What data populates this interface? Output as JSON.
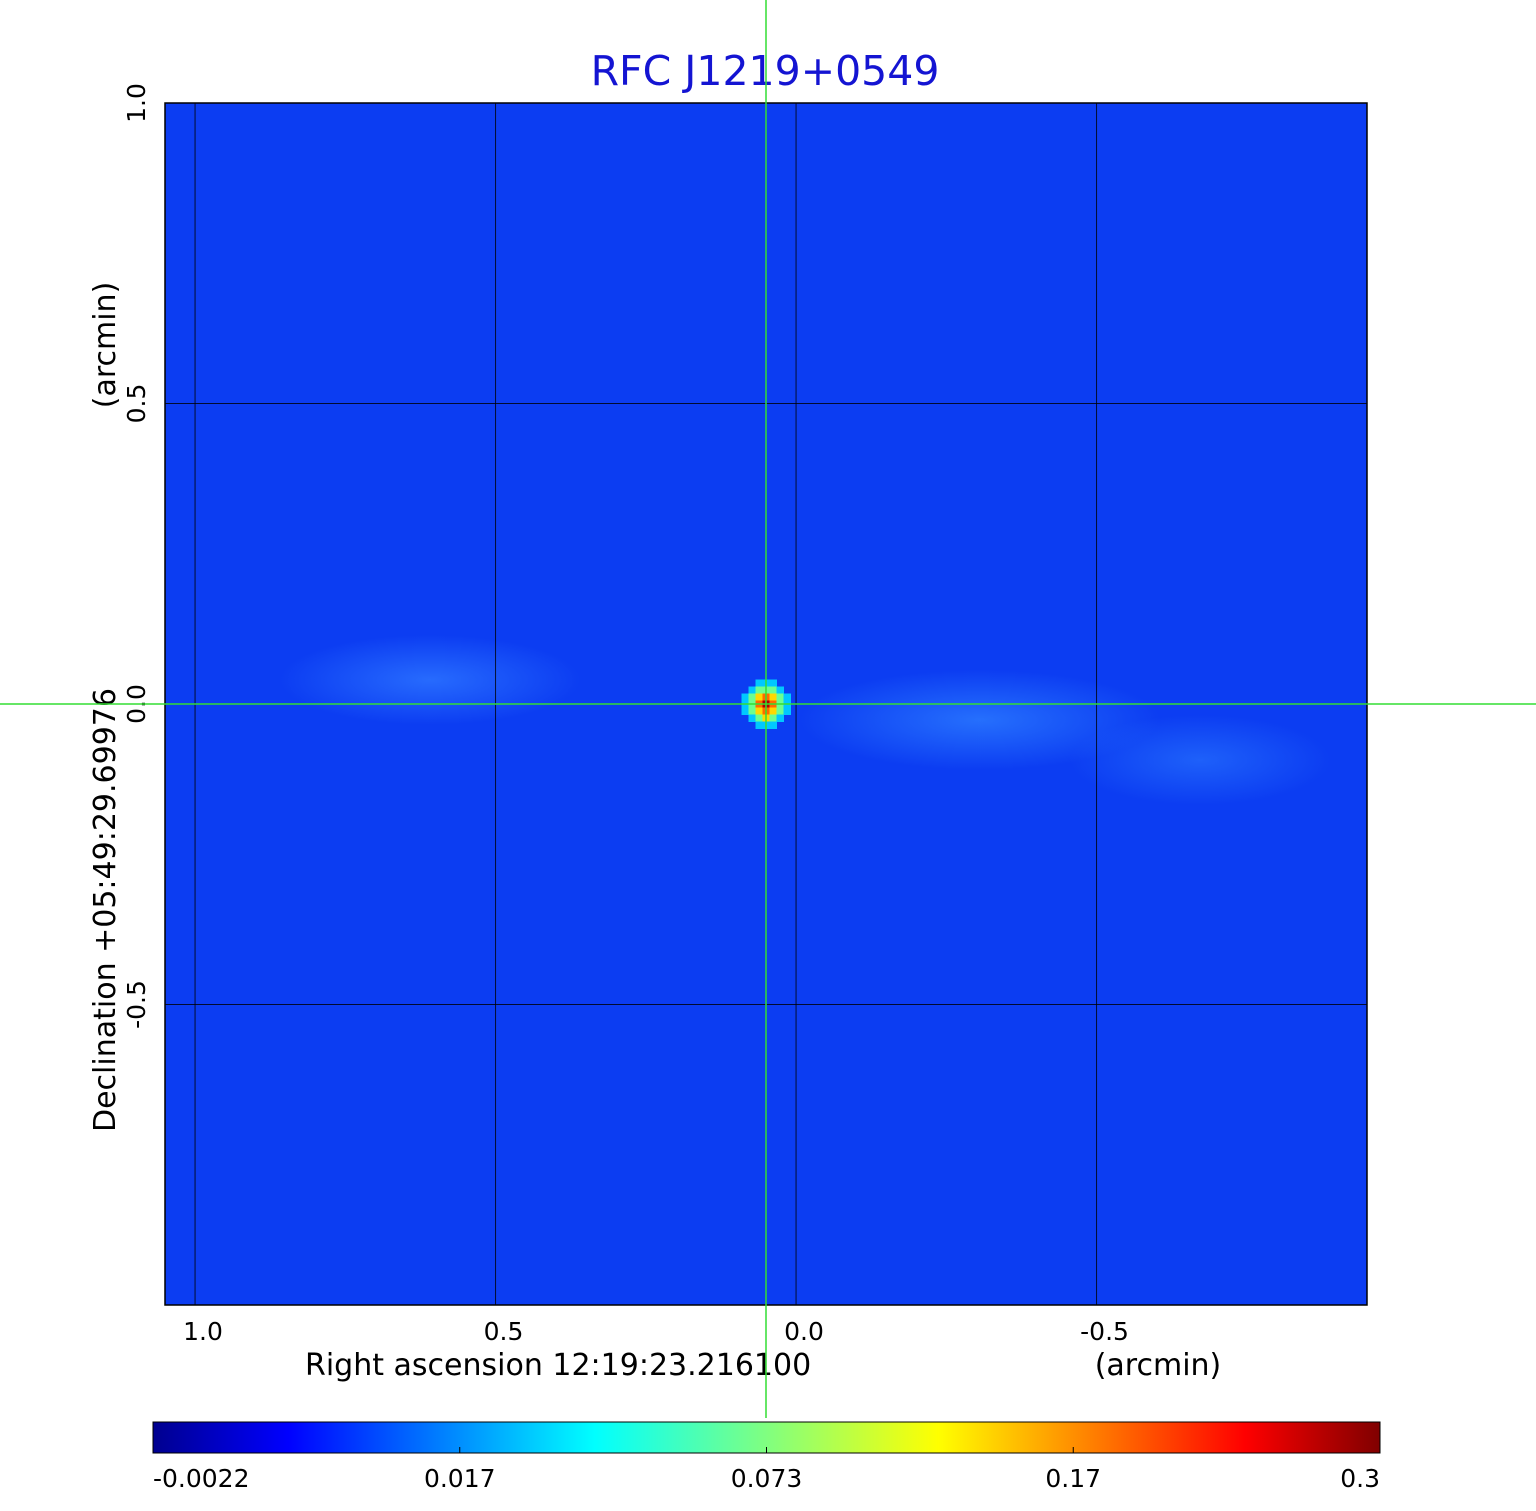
{
  "chart_data": {
    "type": "heatmap",
    "title": "RFC J1219+0549",
    "xlabel": "Right ascension  12:19:23.216100",
    "xunit": "(arcmin)",
    "ylabel": "Declination  +05:49:29.69976",
    "yunit": "(arcmin)",
    "x_ticks": [
      {
        "value": 1.0,
        "label": "1.0"
      },
      {
        "value": 0.5,
        "label": "0.5"
      },
      {
        "value": 0.0,
        "label": "0.0"
      },
      {
        "value": -0.5,
        "label": "-0.5"
      }
    ],
    "y_ticks": [
      {
        "value": 1.0,
        "label": "1.0"
      },
      {
        "value": 0.5,
        "label": "0.5"
      },
      {
        "value": 0.0,
        "label": "0.0"
      },
      {
        "value": -0.5,
        "label": "-0.5"
      }
    ],
    "xlim": [
      1.05,
      -0.95
    ],
    "ylim": [
      -1.0,
      1.0
    ],
    "grid": true,
    "crosshair": {
      "x": 0.05,
      "y": 0.0
    },
    "colorbar": {
      "ticks": [
        {
          "value": -0.0022,
          "label": "-0.0022"
        },
        {
          "value": 0.017,
          "label": "0.017"
        },
        {
          "value": 0.073,
          "label": "0.073"
        },
        {
          "value": 0.17,
          "label": "0.17"
        },
        {
          "value": 0.3,
          "label": "0.3"
        }
      ],
      "colormap": "jet"
    },
    "background_level": 0.005,
    "peak": {
      "x": 0.05,
      "y": 0.0,
      "value": 0.3
    },
    "colors": {
      "title": "#1414d2",
      "crosshair": "#33dd33",
      "grid": "#000000"
    }
  }
}
